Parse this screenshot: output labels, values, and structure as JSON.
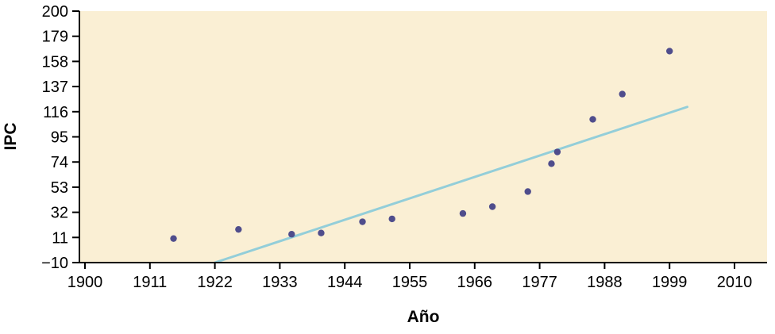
{
  "chart_data": {
    "type": "scatter",
    "title": "",
    "xlabel": "Año",
    "ylabel": "IPC",
    "x_ticks": [
      1900,
      1911,
      1922,
      1933,
      1944,
      1955,
      1966,
      1977,
      1988,
      1999,
      2010
    ],
    "y_ticks": [
      -10,
      11,
      32,
      53,
      74,
      95,
      116,
      137,
      158,
      179,
      200
    ],
    "xlim": [
      1900,
      2010
    ],
    "ylim": [
      -10,
      200
    ],
    "grid": false,
    "legend": "none",
    "points": [
      {
        "x": 1915,
        "y": 10.1
      },
      {
        "x": 1926,
        "y": 17.7
      },
      {
        "x": 1935,
        "y": 13.7
      },
      {
        "x": 1940,
        "y": 14.7
      },
      {
        "x": 1947,
        "y": 24.1
      },
      {
        "x": 1952,
        "y": 26.5
      },
      {
        "x": 1964,
        "y": 31.0
      },
      {
        "x": 1969,
        "y": 36.7
      },
      {
        "x": 1975,
        "y": 49.3
      },
      {
        "x": 1979,
        "y": 72.6
      },
      {
        "x": 1980,
        "y": 82.4
      },
      {
        "x": 1986,
        "y": 109.6
      },
      {
        "x": 1991,
        "y": 130.7
      },
      {
        "x": 1999,
        "y": 166.6
      }
    ],
    "fit_line": {
      "x1": 1922,
      "y1": -10,
      "x2": 2002,
      "y2": 120
    },
    "colors": {
      "background": "#faefd4",
      "point": "#4f4d8c",
      "line": "#93ced9",
      "axis": "#000000"
    }
  }
}
